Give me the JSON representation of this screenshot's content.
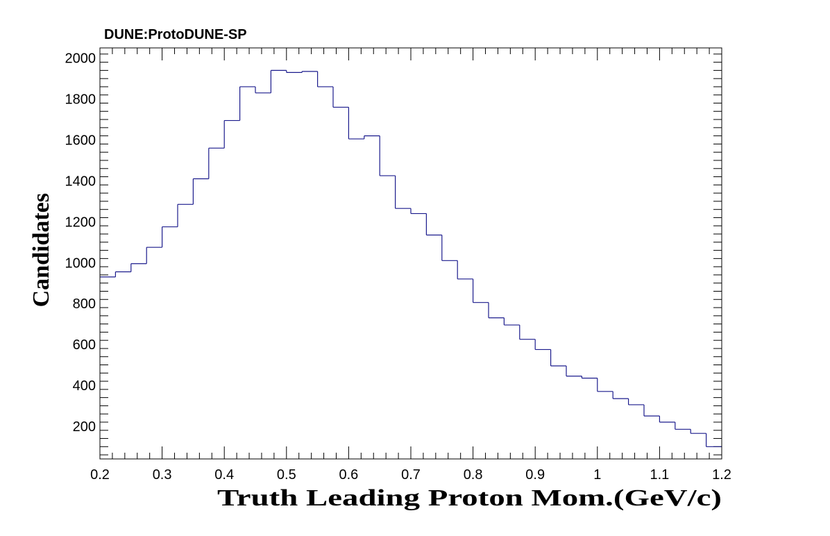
{
  "chart_data": {
    "type": "bar",
    "style": "step-histogram",
    "experiment_label": "DUNE:ProtoDUNE-SP",
    "xlabel": "Truth Leading Proton Mom.(GeV/c)",
    "ylabel": "Candidates",
    "xlim": [
      0.2,
      1.2
    ],
    "ylim": [
      40,
      2050
    ],
    "grid": false,
    "line_color": "#1a1a8c",
    "x_ticks": [
      "0.2",
      "0.3",
      "0.4",
      "0.5",
      "0.6",
      "0.7",
      "0.8",
      "0.9",
      "1",
      "1.1",
      "1.2"
    ],
    "y_ticks": [
      "200",
      "400",
      "600",
      "800",
      "1000",
      "1200",
      "1400",
      "1600",
      "1800",
      "2000"
    ],
    "bin_edges": [
      0.2,
      0.225,
      0.25,
      0.275,
      0.3,
      0.325,
      0.35,
      0.375,
      0.4,
      0.425,
      0.45,
      0.475,
      0.5,
      0.525,
      0.55,
      0.575,
      0.6,
      0.625,
      0.65,
      0.675,
      0.7,
      0.725,
      0.75,
      0.775,
      0.8,
      0.825,
      0.85,
      0.875,
      0.9,
      0.925,
      0.95,
      0.975,
      1.0,
      1.025,
      1.05,
      1.075,
      1.1,
      1.125,
      1.15,
      1.175,
      1.2
    ],
    "values": [
      930,
      955,
      995,
      1075,
      1175,
      1285,
      1410,
      1560,
      1695,
      1860,
      1830,
      1940,
      1930,
      1935,
      1860,
      1760,
      1605,
      1620,
      1425,
      1265,
      1240,
      1135,
      1010,
      920,
      805,
      730,
      695,
      625,
      575,
      495,
      445,
      435,
      370,
      335,
      305,
      250,
      220,
      185,
      165,
      100
    ]
  }
}
